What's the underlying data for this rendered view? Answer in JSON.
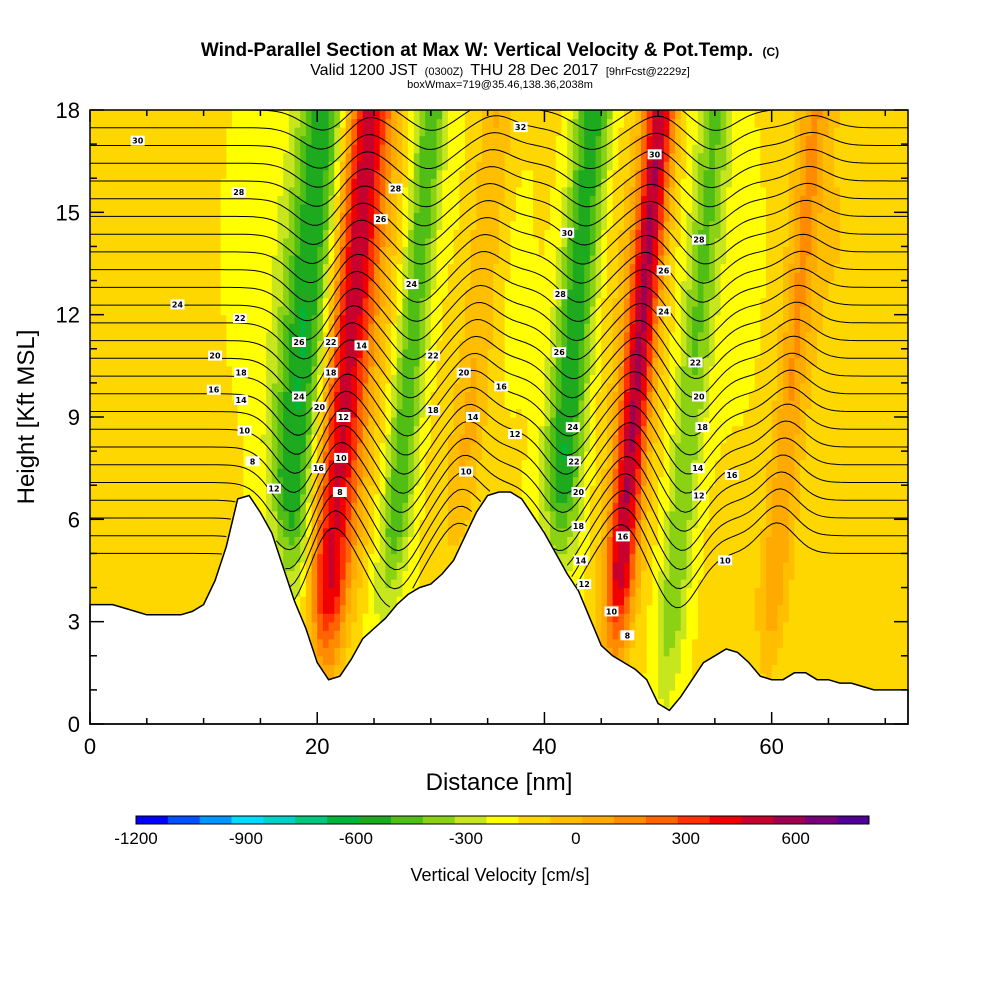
{
  "title": "Wind-Parallel Section at Max W: Vertical Velocity & Pot.Temp.",
  "title_mark": "(C)",
  "subtitle_main": "Valid 1200 JST",
  "subtitle_utc": "(0300Z)",
  "subtitle_date": "THU 28 Dec 2017",
  "subtitle_fcst": "[9hrFcst@2229z]",
  "subtitle2": "boxWmax=719@35.46,138.36,2038m",
  "colors": {
    "terrain": "#ffffff",
    "contour": "#000000",
    "scale": [
      "#0000ff",
      "#0050ff",
      "#0096ff",
      "#00dcff",
      "#00d2c8",
      "#00c87d",
      "#00b43c",
      "#1eaa1e",
      "#50be14",
      "#8cd214",
      "#c8e61e",
      "#ffff00",
      "#ffd700",
      "#ffbe00",
      "#ffaa00",
      "#ff8c00",
      "#ff6400",
      "#ff3200",
      "#f00000",
      "#c8002d",
      "#a00050",
      "#780078",
      "#500096"
    ]
  },
  "chart_data": {
    "type": "heatmap",
    "xlabel": "Distance [nm]",
    "ylabel": "Height [Kft MSL]",
    "colorbar_label": "Vertical Velocity [cm/s]",
    "xlim": [
      0,
      72
    ],
    "ylim": [
      0,
      18
    ],
    "xticks": [
      "0",
      "20",
      "40",
      "60"
    ],
    "yticks": [
      "0",
      "3",
      "6",
      "9",
      "12",
      "15",
      "18"
    ],
    "colorbar_ticks": [
      "-1200",
      "-900",
      "-600",
      "-300",
      "0",
      "300",
      "600"
    ],
    "colorbar_range": [
      -1200,
      800
    ],
    "colorbar_step": 100,
    "terrain": {
      "x": [
        0,
        1,
        2,
        3,
        4,
        5,
        6,
        7,
        8,
        9,
        10,
        11,
        12,
        13,
        14,
        15,
        16,
        17,
        18,
        19,
        20,
        21,
        22,
        23,
        24,
        25,
        26,
        27,
        28,
        29,
        30,
        31,
        32,
        33,
        34,
        35,
        36,
        37,
        38,
        39,
        40,
        41,
        42,
        43,
        44,
        45,
        46,
        47,
        48,
        49,
        50,
        51,
        52,
        53,
        54,
        55,
        56,
        57,
        58,
        59,
        60,
        61,
        62,
        63,
        64,
        65,
        66,
        67,
        68,
        69,
        70,
        71,
        72
      ],
      "height": [
        3.5,
        3.5,
        3.5,
        3.4,
        3.3,
        3.2,
        3.2,
        3.2,
        3.2,
        3.3,
        3.5,
        4.2,
        5.2,
        6.6,
        6.7,
        6.2,
        5.6,
        4.6,
        3.6,
        2.8,
        1.8,
        1.3,
        1.4,
        1.9,
        2.5,
        2.8,
        3.1,
        3.5,
        3.8,
        4.0,
        4.1,
        4.4,
        4.8,
        5.5,
        6.2,
        6.7,
        6.8,
        6.8,
        6.6,
        6.1,
        5.6,
        5.0,
        4.4,
        3.9,
        3.1,
        2.3,
        2.0,
        1.8,
        1.6,
        1.3,
        0.6,
        0.4,
        0.8,
        1.3,
        1.8,
        2.0,
        2.2,
        2.1,
        1.8,
        1.4,
        1.3,
        1.3,
        1.5,
        1.5,
        1.3,
        1.3,
        1.2,
        1.2,
        1.1,
        1.0,
        1.0,
        1.0,
        1.0
      ]
    },
    "updrafts": [
      {
        "x0": 21.0,
        "x1": 23.5,
        "peak": 700
      },
      {
        "x0": 47.0,
        "x1": 48.7,
        "peak": 760
      },
      {
        "x0": 32.5,
        "x1": 34.5,
        "peak": 220
      },
      {
        "x0": 61.0,
        "x1": 62.0,
        "peak": 260
      }
    ],
    "downdrafts": [
      {
        "x0": 17.0,
        "x1": 19.5,
        "peak": -520
      },
      {
        "x0": 41.0,
        "x1": 43.0,
        "peak": -540
      },
      {
        "x0": 27.0,
        "x1": 28.5,
        "peak": -420
      },
      {
        "x0": 52.0,
        "x1": 53.5,
        "peak": -300
      }
    ],
    "theta_labels": [
      {
        "x": 4.2,
        "y": 17.1,
        "text": "30"
      },
      {
        "x": 13.1,
        "y": 15.6,
        "text": "28"
      },
      {
        "x": 7.7,
        "y": 12.3,
        "text": "24"
      },
      {
        "x": 13.2,
        "y": 11.9,
        "text": "22"
      },
      {
        "x": 11.0,
        "y": 10.8,
        "text": "20"
      },
      {
        "x": 13.3,
        "y": 10.3,
        "text": "18"
      },
      {
        "x": 10.9,
        "y": 9.8,
        "text": "16"
      },
      {
        "x": 13.3,
        "y": 9.5,
        "text": "14"
      },
      {
        "x": 13.6,
        "y": 8.6,
        "text": "10"
      },
      {
        "x": 14.3,
        "y": 7.7,
        "text": "8"
      },
      {
        "x": 16.2,
        "y": 6.9,
        "text": "12"
      },
      {
        "x": 18.4,
        "y": 11.2,
        "text": "26"
      },
      {
        "x": 18.4,
        "y": 9.6,
        "text": "24"
      },
      {
        "x": 21.2,
        "y": 11.2,
        "text": "22"
      },
      {
        "x": 21.2,
        "y": 10.3,
        "text": "18"
      },
      {
        "x": 20.2,
        "y": 9.3,
        "text": "20"
      },
      {
        "x": 22.3,
        "y": 9.0,
        "text": "12"
      },
      {
        "x": 20.1,
        "y": 7.5,
        "text": "16"
      },
      {
        "x": 22.1,
        "y": 7.8,
        "text": "10"
      },
      {
        "x": 22.0,
        "y": 6.8,
        "text": "8"
      },
      {
        "x": 23.9,
        "y": 11.1,
        "text": "14"
      },
      {
        "x": 26.9,
        "y": 15.7,
        "text": "28"
      },
      {
        "x": 25.6,
        "y": 14.8,
        "text": "26"
      },
      {
        "x": 28.3,
        "y": 12.9,
        "text": "24"
      },
      {
        "x": 30.2,
        "y": 10.8,
        "text": "22"
      },
      {
        "x": 32.9,
        "y": 10.3,
        "text": "20"
      },
      {
        "x": 30.2,
        "y": 9.2,
        "text": "18"
      },
      {
        "x": 33.7,
        "y": 9.0,
        "text": "14"
      },
      {
        "x": 36.2,
        "y": 9.9,
        "text": "16"
      },
      {
        "x": 37.4,
        "y": 8.5,
        "text": "12"
      },
      {
        "x": 33.1,
        "y": 7.4,
        "text": "10"
      },
      {
        "x": 37.9,
        "y": 17.5,
        "text": "32"
      },
      {
        "x": 42.0,
        "y": 14.4,
        "text": "30"
      },
      {
        "x": 41.4,
        "y": 12.6,
        "text": "28"
      },
      {
        "x": 41.3,
        "y": 10.9,
        "text": "26"
      },
      {
        "x": 42.5,
        "y": 8.7,
        "text": "24"
      },
      {
        "x": 42.6,
        "y": 7.7,
        "text": "22"
      },
      {
        "x": 43.0,
        "y": 6.8,
        "text": "20"
      },
      {
        "x": 43.0,
        "y": 5.8,
        "text": "18"
      },
      {
        "x": 43.2,
        "y": 4.8,
        "text": "14"
      },
      {
        "x": 43.5,
        "y": 4.1,
        "text": "12"
      },
      {
        "x": 46.9,
        "y": 5.5,
        "text": "16"
      },
      {
        "x": 45.9,
        "y": 3.3,
        "text": "10"
      },
      {
        "x": 47.3,
        "y": 2.6,
        "text": "8"
      },
      {
        "x": 49.7,
        "y": 16.7,
        "text": "30"
      },
      {
        "x": 53.6,
        "y": 14.2,
        "text": "28"
      },
      {
        "x": 50.5,
        "y": 13.3,
        "text": "26"
      },
      {
        "x": 50.5,
        "y": 12.1,
        "text": "24"
      },
      {
        "x": 53.3,
        "y": 10.6,
        "text": "22"
      },
      {
        "x": 53.6,
        "y": 9.6,
        "text": "20"
      },
      {
        "x": 53.9,
        "y": 8.7,
        "text": "18"
      },
      {
        "x": 53.5,
        "y": 7.5,
        "text": "14"
      },
      {
        "x": 53.6,
        "y": 6.7,
        "text": "12"
      },
      {
        "x": 56.5,
        "y": 7.3,
        "text": "16"
      },
      {
        "x": 55.9,
        "y": 4.8,
        "text": "10"
      }
    ]
  }
}
